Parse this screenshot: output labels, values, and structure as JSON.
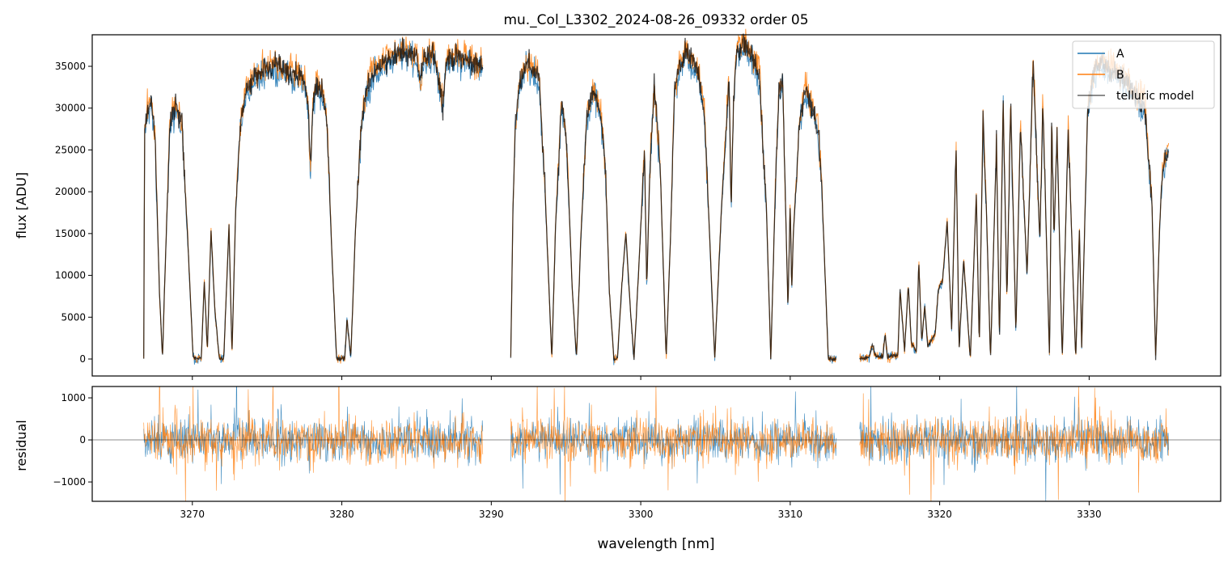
{
  "chart_data": {
    "type": "line",
    "title": "mu._Col_L3302_2024-08-26_09332  order 05",
    "xlabel": "wavelength [nm]",
    "ylabel": "flux [ADU]",
    "residual_ylabel": "residual",
    "xlim": [
      3263.3,
      3338.8
    ],
    "ylim": [
      -2030,
      38770
    ],
    "residual_ylim": [
      -1460,
      1270
    ],
    "xticks": [
      3270,
      3280,
      3290,
      3300,
      3310,
      3320,
      3330
    ],
    "yticks": [
      0,
      5000,
      10000,
      15000,
      20000,
      25000,
      30000,
      35000
    ],
    "residual_yticks": [
      -1000,
      0,
      1000
    ],
    "legend": {
      "placement": "top-right",
      "entries": [
        "A",
        "B",
        "telluric model"
      ]
    },
    "series": [
      {
        "name": "A",
        "color": "#1f77b4",
        "note_scale": 0.985,
        "residual_scatter": 420
      },
      {
        "name": "B",
        "color": "#ff7f0e",
        "note_scale": 1.01,
        "residual_scatter": 440
      },
      {
        "name": "telluric model",
        "color": "#000000"
      }
    ],
    "segments": [
      [
        3266.75,
        3289.45
      ],
      [
        3291.3,
        3313.1
      ],
      [
        3314.65,
        3335.35
      ]
    ],
    "model": {
      "x": [
        3266.75,
        3266.8,
        3267.0,
        3267.24,
        3267.5,
        3267.8,
        3268.0,
        3268.2,
        3268.5,
        3268.9,
        3269.3,
        3269.7,
        3270.05,
        3270.2,
        3270.6,
        3270.8,
        3271.0,
        3271.25,
        3271.5,
        3271.8,
        3272.1,
        3272.3,
        3272.45,
        3272.65,
        3272.9,
        3273.2,
        3273.6,
        3274.2,
        3274.8,
        3275.5,
        3276.2,
        3276.8,
        3277.5,
        3277.75,
        3277.9,
        3278.05,
        3278.3,
        3278.7,
        3279.0,
        3279.35,
        3279.65,
        3280.2,
        3280.35,
        3280.6,
        3280.9,
        3281.3,
        3281.7,
        3282.2,
        3282.8,
        3283.5,
        3284.3,
        3285.0,
        3285.25,
        3285.5,
        3286.2,
        3286.75,
        3287.0,
        3287.8,
        3288.6,
        3289.45,
        3291.3,
        3291.45,
        3291.6,
        3291.9,
        3292.3,
        3292.7,
        3293.2,
        3293.6,
        3294.05,
        3294.3,
        3294.7,
        3295.0,
        3295.15,
        3295.4,
        3295.7,
        3296.0,
        3296.4,
        3296.85,
        3297.3,
        3297.65,
        3297.9,
        3298.2,
        3298.45,
        3298.7,
        3299.0,
        3299.3,
        3299.55,
        3299.9,
        3300.25,
        3300.4,
        3300.6,
        3300.9,
        3301.3,
        3301.7,
        3302.0,
        3302.25,
        3302.6,
        3303.0,
        3303.5,
        3303.9,
        3304.25,
        3304.6,
        3304.95,
        3305.4,
        3305.9,
        3306.05,
        3306.2,
        3306.4,
        3306.95,
        3307.5,
        3307.95,
        3308.2,
        3308.4,
        3308.7,
        3309.0,
        3309.25,
        3309.5,
        3309.85,
        3310.0,
        3310.1,
        3310.2,
        3310.6,
        3311.0,
        3311.4,
        3311.85,
        3312.1,
        3312.55,
        3313.1,
        3314.65,
        3315.3,
        3315.5,
        3315.7,
        3316.2,
        3316.35,
        3316.5,
        3317.2,
        3317.35,
        3317.65,
        3317.9,
        3318.1,
        3318.45,
        3318.6,
        3318.8,
        3319.0,
        3319.2,
        3319.7,
        3319.9,
        3320.2,
        3320.5,
        3320.8,
        3321.1,
        3321.3,
        3321.6,
        3322.05,
        3322.45,
        3322.65,
        3322.9,
        3323.1,
        3323.4,
        3323.8,
        3324.0,
        3324.25,
        3324.5,
        3324.75,
        3325.1,
        3325.4,
        3325.85,
        3326.25,
        3326.7,
        3326.9,
        3327.35,
        3327.5,
        3327.65,
        3327.85,
        3328.2,
        3328.6,
        3329.1,
        3329.35,
        3329.5,
        3329.9,
        3330.3,
        3330.8,
        3331.5,
        3332.2,
        3333.0,
        3333.7,
        3334.2,
        3334.45,
        3334.7,
        3334.9,
        3335.35
      ],
      "y": [
        0,
        27000,
        29500,
        30550,
        27000,
        8000,
        0,
        12000,
        28500,
        30200,
        28000,
        14000,
        200,
        0,
        100,
        9400,
        1100,
        15400,
        6000,
        0,
        100,
        9000,
        16000,
        500,
        18000,
        28000,
        32000,
        34000,
        34500,
        35000,
        34500,
        34000,
        33500,
        30000,
        22000,
        30000,
        33000,
        32000,
        28500,
        12000,
        0,
        100,
        4900,
        0,
        15000,
        28000,
        32500,
        34500,
        35500,
        36500,
        36500,
        36200,
        33000,
        35800,
        36500,
        30500,
        35800,
        36200,
        35500,
        35000,
        0,
        18000,
        28000,
        33000,
        35400,
        34800,
        33500,
        20000,
        0,
        16000,
        30600,
        27000,
        21000,
        9000,
        0,
        15000,
        29000,
        32300,
        29500,
        22500,
        8000,
        0,
        100,
        8000,
        15200,
        6000,
        0,
        12000,
        25200,
        8400,
        22000,
        32500,
        23000,
        0,
        15000,
        32000,
        35000,
        36500,
        35500,
        34000,
        29500,
        15000,
        0,
        18000,
        33700,
        17800,
        30000,
        37000,
        37600,
        36000,
        33700,
        24000,
        18500,
        0,
        20000,
        32500,
        33000,
        5900,
        19000,
        8000,
        14500,
        28000,
        32500,
        30500,
        27800,
        21000,
        0,
        0,
        0,
        300,
        1800,
        300,
        300,
        3100,
        300,
        500,
        8400,
        1000,
        8900,
        2000,
        800,
        11800,
        2000,
        6400,
        1500,
        3000,
        8200,
        9500,
        16500,
        3500,
        25300,
        1000,
        12000,
        0,
        19700,
        1500,
        28700,
        19300,
        0,
        25800,
        2000,
        31000,
        7000,
        30800,
        3000,
        28300,
        10000,
        35500,
        14000,
        31000,
        0,
        28500,
        14500,
        27000,
        0,
        27600,
        0,
        15500,
        1500,
        30000,
        34000,
        35500,
        34500,
        33500,
        32000,
        30600,
        19000,
        0,
        15000,
        23000,
        25500
      ]
    }
  }
}
